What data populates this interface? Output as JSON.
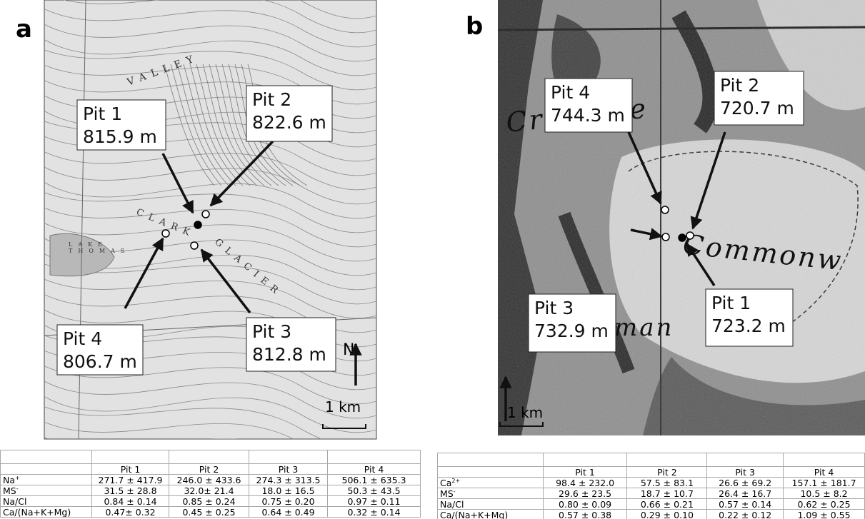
{
  "panels": [
    {
      "label": "a",
      "map_labels": [
        "VALLEY",
        "CLARK",
        "GLACIER",
        "LAKE",
        "THOMAS"
      ],
      "pits": [
        {
          "name": "Pit 1",
          "elevation": "815.9 m"
        },
        {
          "name": "Pit 2",
          "elevation": "822.6 m"
        },
        {
          "name": "Pit 3",
          "elevation": "812.8 m"
        },
        {
          "name": "Pit 4",
          "elevation": "806.7 m"
        }
      ],
      "north": "N",
      "scale": "1 km",
      "table": {
        "header": [
          "Pit 1",
          "Pit 2",
          "Pit 3",
          "Pit 4"
        ],
        "rows": [
          {
            "label": "Na",
            "sup": "+",
            "cells": [
              "271.7 ± 417.9",
              "246.0 ± 433.6",
              "274.3 ± 313.5",
              "506.1 ± 635.3"
            ]
          },
          {
            "label": "MS",
            "sup": "-",
            "cells": [
              "31.5 ± 28.8",
              "32.0± 21.4",
              "18.0 ± 16.5",
              "50.3 ± 43.5"
            ]
          },
          {
            "label": "Na/Cl",
            "cells": [
              "0.84 ± 0.14",
              "0.85 ± 0.24",
              "0.75 ± 0.20",
              "0.97 ± 0.11"
            ]
          },
          {
            "label": "Ca/(Na+K+Mg)",
            "cells": [
              "0.47± 0.32",
              "0.45 ± 0.25",
              "0.64 ± 0.49",
              "0.32 ± 0.14"
            ]
          }
        ]
      }
    },
    {
      "label": "b",
      "map_labels": [
        "Crevasse",
        "Commonw",
        "man"
      ],
      "pits": [
        {
          "name": "Pit 1",
          "elevation": "723.2 m"
        },
        {
          "name": "Pit 2",
          "elevation": "720.7 m"
        },
        {
          "name": "Pit 3",
          "elevation": "732.9 m"
        },
        {
          "name": "Pit 4",
          "elevation": "744.3 m"
        }
      ],
      "scale": "1 km",
      "table": {
        "header": [
          "Pit 1",
          "Pit 2",
          "Pit 3",
          "Pit 4"
        ],
        "rows": [
          {
            "label": "Ca",
            "sup": "2+",
            "cells": [
              "98.4 ± 232.0",
              "57.5 ± 83.1",
              "26.6 ± 69.2",
              "157.1 ± 181.7"
            ]
          },
          {
            "label": "MS",
            "sup": "-",
            "cells": [
              "29.6 ± 23.5",
              "18.7 ± 10.7",
              "26.4 ± 16.7",
              "10.5 ± 8.2"
            ]
          },
          {
            "label": "Na/Cl",
            "cells": [
              "0.80 ± 0.09",
              "0.66 ± 0.21",
              "0.57 ± 0.14",
              "0.62 ± 0.25"
            ]
          },
          {
            "label": "Ca/(Na+K+Mg)",
            "cells": [
              "0.57 ± 0.38",
              "0.29 ± 0.10",
              "0.22 ± 0.12",
              "1.09 ± 0.55"
            ]
          }
        ]
      }
    }
  ]
}
